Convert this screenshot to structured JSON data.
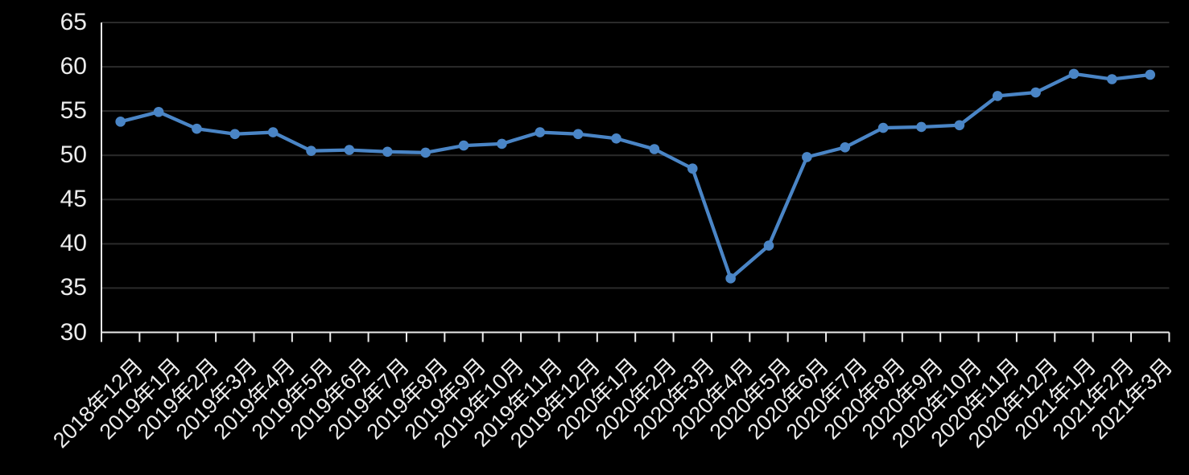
{
  "chart_data": {
    "type": "line",
    "title": "",
    "xlabel": "",
    "ylabel": "",
    "categories": [
      "2018年12月",
      "2019年1月",
      "2019年2月",
      "2019年3月",
      "2019年4月",
      "2019年5月",
      "2019年6月",
      "2019年7月",
      "2019年8月",
      "2019年9月",
      "2019年10月",
      "2019年11月",
      "2019年12月",
      "2020年1月",
      "2020年2月",
      "2020年3月",
      "2020年4月",
      "2020年5月",
      "2020年6月",
      "2020年7月",
      "2020年8月",
      "2020年9月",
      "2020年10月",
      "2020年11月",
      "2020年12月",
      "2021年1月",
      "2021年2月",
      "2021年3月"
    ],
    "values": [
      53.8,
      54.9,
      53.0,
      52.4,
      52.6,
      50.5,
      50.6,
      50.4,
      50.3,
      51.1,
      51.3,
      52.6,
      52.4,
      51.9,
      50.7,
      48.5,
      36.1,
      39.8,
      49.8,
      50.9,
      53.1,
      53.2,
      53.4,
      56.7,
      57.1,
      59.2,
      58.6,
      59.1
    ],
    "ylim": [
      30,
      65
    ],
    "yticks": [
      30,
      35,
      40,
      45,
      50,
      55,
      60,
      65
    ],
    "grid": true,
    "legend": false,
    "x_label_rotation": -45,
    "x_tick_mode": "between-categories",
    "marker": "circle"
  },
  "colors": {
    "background": "#000000",
    "line": "#4a85c6",
    "marker": "#4a85c6",
    "gridline": "#2b2b2b",
    "axis": "#ebebeb",
    "tick_label": "#ececec"
  }
}
